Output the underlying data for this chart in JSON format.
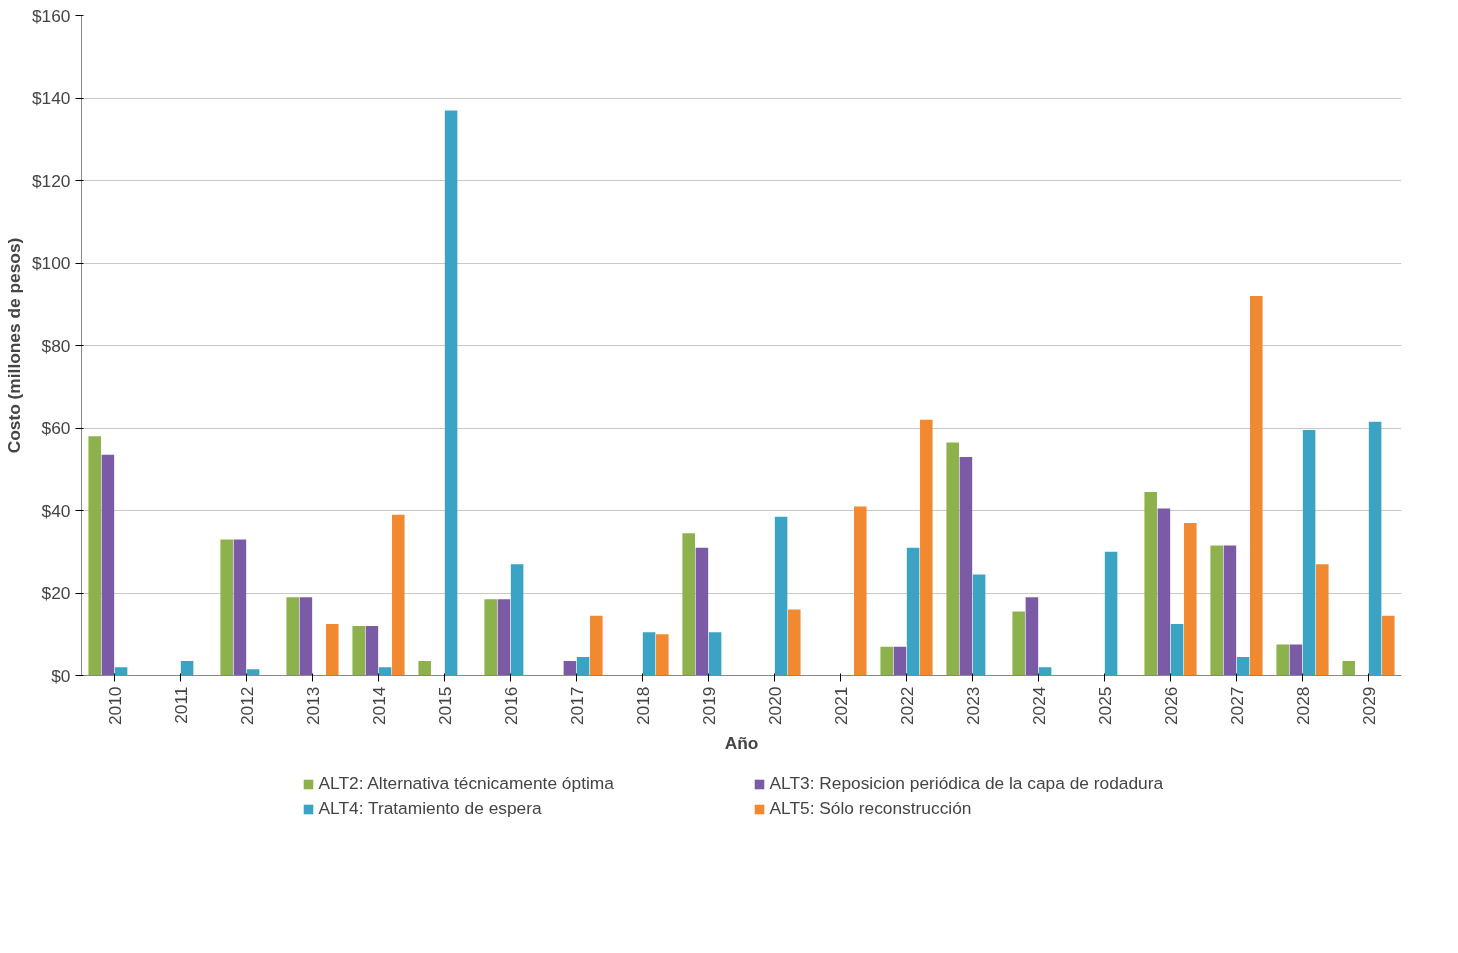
{
  "chart_data": {
    "type": "bar",
    "xlabel": "Año",
    "ylabel": "Costo (millones de pesos)",
    "categories": [
      "2010",
      "2011",
      "2012",
      "2013",
      "2014",
      "2015",
      "2016",
      "2017",
      "2018",
      "2019",
      "2020",
      "2021",
      "2022",
      "2023",
      "2024",
      "2025",
      "2026",
      "2027",
      "2028",
      "2029"
    ],
    "series": [
      {
        "name": "ALT2: Alternativa técnicamente óptima",
        "color": "#8db14b",
        "values": [
          58,
          null,
          33,
          19,
          12,
          3.5,
          18.5,
          null,
          null,
          34.5,
          null,
          null,
          7,
          56.5,
          15.5,
          null,
          44.5,
          31.5,
          7.5,
          3.5
        ]
      },
      {
        "name": "ALT3: Reposicion periódica de la capa de rodadura",
        "color": "#7b5aa6",
        "values": [
          53.5,
          null,
          33,
          19,
          12,
          null,
          18.5,
          3.5,
          null,
          31,
          null,
          null,
          7,
          53,
          19,
          null,
          40.5,
          31.5,
          7.5,
          null
        ]
      },
      {
        "name": "ALT4: Tratamiento de espera",
        "color": "#3ba3c3",
        "values": [
          2,
          3.5,
          1.5,
          null,
          2,
          137,
          27,
          4.5,
          10.5,
          10.5,
          38.5,
          null,
          31,
          24.5,
          2,
          30,
          12.5,
          4.5,
          59.5,
          61.5
        ]
      },
      {
        "name": "ALT5: Sólo reconstrucción",
        "color": "#f0892f",
        "values": [
          null,
          null,
          null,
          12.5,
          39,
          null,
          null,
          14.5,
          10,
          null,
          16,
          41,
          62,
          null,
          null,
          null,
          37,
          92,
          27,
          14.5
        ]
      }
    ],
    "ylim": [
      0,
      160
    ],
    "yticks": [
      {
        "value": 0,
        "label": "$0"
      },
      {
        "value": 20,
        "label": "$20"
      },
      {
        "value": 40,
        "label": "$40"
      },
      {
        "value": 60,
        "label": "$60"
      },
      {
        "value": 80,
        "label": "$80"
      },
      {
        "value": 100,
        "label": "$100"
      },
      {
        "value": 120,
        "label": "$120"
      },
      {
        "value": 140,
        "label": "$140"
      },
      {
        "value": 160,
        "label": "$160"
      }
    ],
    "grid": "y",
    "legend": "bottom"
  }
}
